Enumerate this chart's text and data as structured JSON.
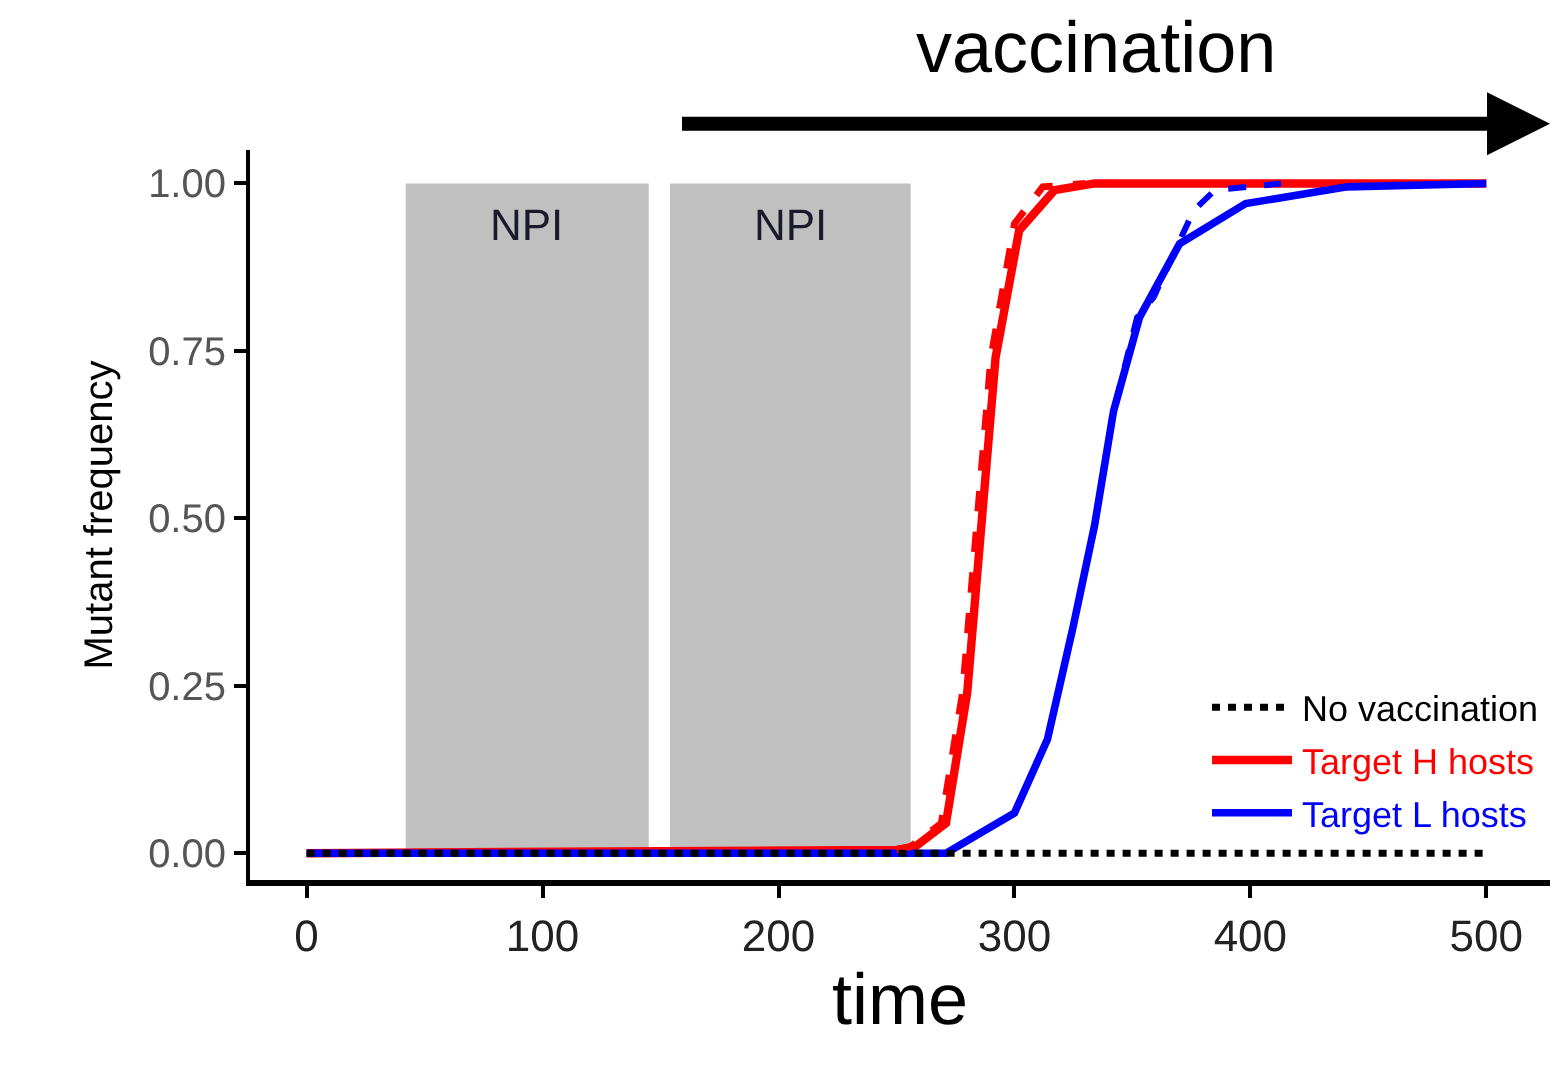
{
  "chart_data": {
    "type": "line",
    "xlabel": "time",
    "ylabel": "Mutant frequency",
    "xlim": [
      -24,
      527
    ],
    "xticks": [
      0,
      100,
      200,
      300,
      400,
      500
    ],
    "ylim": [
      -0.04,
      1.05
    ],
    "yticks": [
      {
        "value": 0,
        "label": "0.00"
      },
      {
        "value": 0.25,
        "label": "0.25"
      },
      {
        "value": 0.5,
        "label": "0.50"
      },
      {
        "value": 0.75,
        "label": "0.75"
      },
      {
        "value": 1,
        "label": "1.00"
      }
    ],
    "grid": false,
    "legend": "bottom right",
    "marker": "none",
    "bands": [
      {
        "axis": "x",
        "from": 42,
        "to": 145,
        "label": "NPI",
        "color": "#c0c0c0"
      },
      {
        "axis": "x",
        "from": 154,
        "to": 256,
        "label": "NPI",
        "color": "#c0c0c0"
      }
    ],
    "annotations": [
      "vaccination"
    ],
    "series": [
      {
        "name": "No vaccination",
        "color": "#000000",
        "line_style": "dotted",
        "x": [
          0,
          500
        ],
        "values": [
          0,
          0
        ]
      },
      {
        "name": "Target H hosts",
        "color": "#ff0000",
        "line_style": "solid",
        "x": [
          0,
          250,
          258,
          271,
          280,
          286,
          292,
          302,
          317,
          334,
          400,
          500
        ],
        "values": [
          0,
          0.005,
          0.01,
          0.045,
          0.24,
          0.49,
          0.74,
          0.93,
          0.99,
          1,
          1,
          1
        ]
      },
      {
        "name": "Target L hosts",
        "color": "#0000ff",
        "line_style": "solid",
        "x": [
          0,
          271,
          300,
          314,
          325,
          334,
          342,
          353,
          370,
          398,
          441,
          500
        ],
        "values": [
          0,
          0,
          0.06,
          0.17,
          0.34,
          0.49,
          0.66,
          0.8,
          0.91,
          0.97,
          0.995,
          1
        ]
      },
      {
        "color": "#ff0000",
        "line_style": "dashed",
        "x": [
          250,
          256,
          269,
          278,
          284,
          290,
          300,
          312,
          330
        ],
        "values": [
          0.005,
          0.01,
          0.045,
          0.24,
          0.49,
          0.74,
          0.94,
          0.995,
          1
        ]
      },
      {
        "color": "#0000ff",
        "line_style": "dashed",
        "x": [
          271,
          300,
          314,
          325,
          334,
          342,
          352,
          359,
          376,
          385,
          413
        ],
        "values": [
          0,
          0.06,
          0.17,
          0.34,
          0.49,
          0.66,
          0.8,
          0.83,
          0.96,
          0.99,
          1
        ]
      }
    ]
  }
}
